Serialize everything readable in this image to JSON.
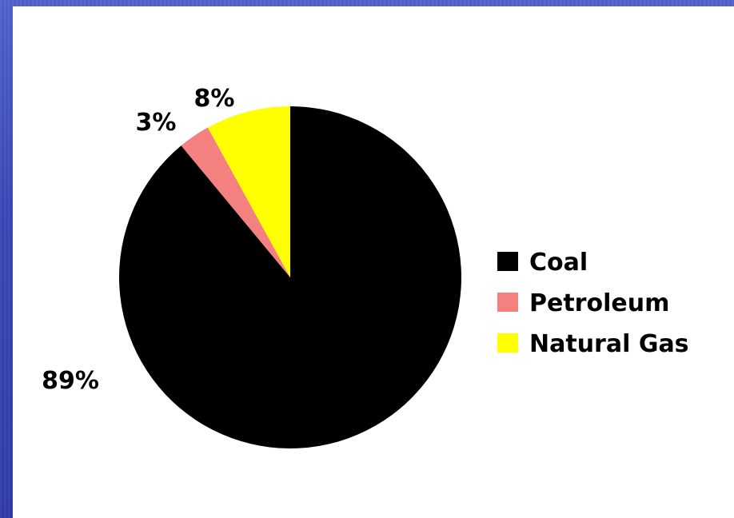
{
  "chart_data": {
    "type": "pie",
    "title": "",
    "categories": [
      "Coal",
      "Petroleum",
      "Natural Gas"
    ],
    "values": [
      89,
      3,
      8
    ],
    "labels": [
      "89%",
      "3%",
      "8%"
    ],
    "colors": [
      "#000000",
      "#f58080",
      "#ffff00"
    ],
    "start_angle_deg": 0,
    "direction": "clockwise",
    "legend": {
      "placement": "right",
      "items": [
        "Coal",
        "Petroleum",
        "Natural Gas"
      ]
    }
  }
}
